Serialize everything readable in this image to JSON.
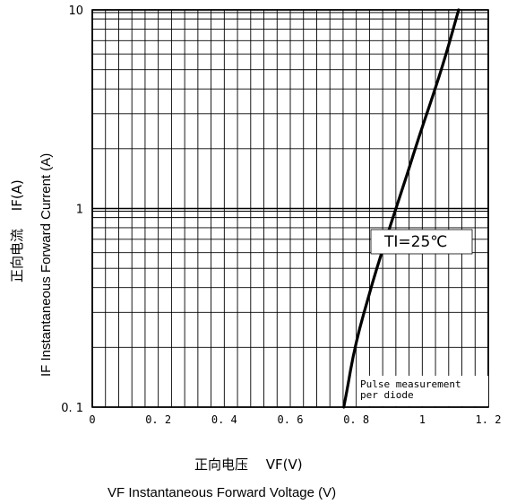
{
  "chart_data": {
    "type": "line",
    "x_scale": "linear",
    "y_scale": "log",
    "xlim": [
      0,
      1.2
    ],
    "ylim": [
      0.1,
      10
    ],
    "x_ticks": [
      {
        "value": 0,
        "label": "0"
      },
      {
        "value": 0.2,
        "label": "0. 2"
      },
      {
        "value": 0.4,
        "label": "0. 4"
      },
      {
        "value": 0.6,
        "label": "0. 6"
      },
      {
        "value": 0.8,
        "label": "0. 8"
      },
      {
        "value": 1.0,
        "label": "1"
      },
      {
        "value": 1.2,
        "label": "1. 2"
      }
    ],
    "y_ticks": [
      {
        "value": 0.1,
        "label": "0. 1"
      },
      {
        "value": 1,
        "label": "1"
      },
      {
        "value": 10,
        "label": "10"
      }
    ],
    "xlabel_cn": "正向电压　 VF(V)",
    "xlabel_en": "VF  Instantaneous Forward Voltage (V)",
    "ylabel_cn": "正向电流　 IF(A)",
    "ylabel_en": "IF Instantaneous Forward Current (A)",
    "grid": true,
    "series": [
      {
        "x": [
          0.762,
          0.775,
          0.79,
          0.81,
          0.835,
          0.862,
          0.89,
          0.92,
          0.955,
          0.99,
          1.03,
          1.07,
          1.11
        ],
        "y": [
          0.1,
          0.13,
          0.18,
          0.25,
          0.35,
          0.5,
          0.7,
          1.0,
          1.5,
          2.3,
          3.6,
          5.8,
          10
        ]
      }
    ],
    "annotations": [
      {
        "text": "TI=25℃"
      },
      {
        "text": "Pulse measurement"
      },
      {
        "text": "per diode"
      }
    ]
  },
  "colors": {
    "line": "#000000",
    "grid": "#000000",
    "background": "#ffffff"
  }
}
